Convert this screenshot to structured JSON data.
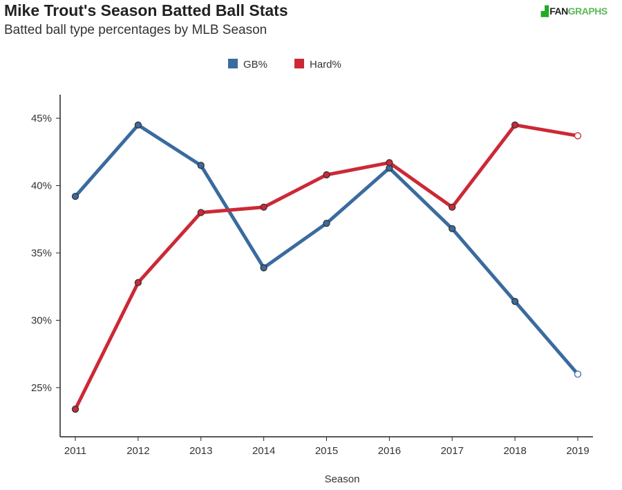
{
  "header": {
    "title": "Mike Trout's Season Batted Ball Stats",
    "subtitle": "Batted ball type percentages by MLB Season",
    "logo_fan": "FAN",
    "logo_graphs": "GRAPHS"
  },
  "chart_data": {
    "type": "line",
    "title": "Mike Trout's Season Batted Ball Stats",
    "subtitle": "Batted ball type percentages by MLB Season",
    "xlabel": "Season",
    "ylabel": "",
    "x": [
      "2011",
      "2012",
      "2013",
      "2014",
      "2015",
      "2016",
      "2017",
      "2018",
      "2019"
    ],
    "yticks": [
      25,
      30,
      35,
      40,
      45
    ],
    "ytick_labels": [
      "25%",
      "30%",
      "35%",
      "40%",
      "45%"
    ],
    "ylim": [
      21.35,
      46.75
    ],
    "legend_position": "top-center",
    "series": [
      {
        "name": "GB%",
        "color": "#3a6b9e",
        "values": [
          39.2,
          44.5,
          41.5,
          33.9,
          37.2,
          41.3,
          36.8,
          31.4,
          26.0
        ]
      },
      {
        "name": "Hard%",
        "color": "#cc2936",
        "values": [
          23.4,
          32.8,
          38.0,
          38.4,
          40.8,
          41.7,
          38.4,
          44.5,
          43.7
        ]
      }
    ]
  }
}
